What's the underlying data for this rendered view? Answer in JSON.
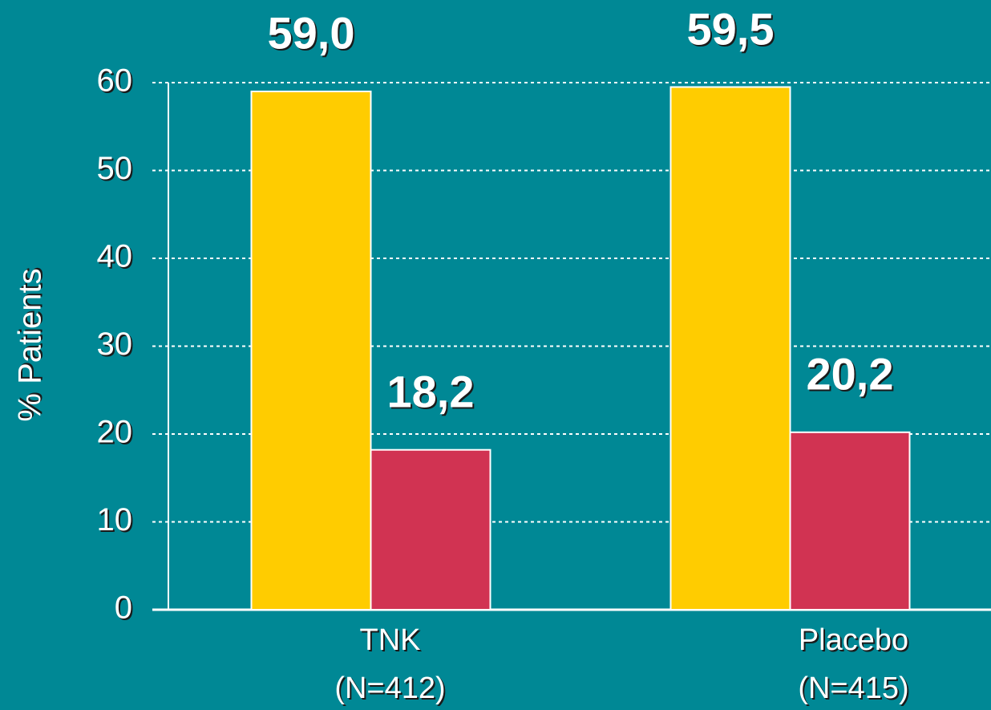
{
  "chart_data": {
    "type": "bar",
    "y_label": "% Patients",
    "categories": [
      [
        "TNK",
        "(N=412)"
      ],
      [
        "Placebo",
        "(N=415)"
      ]
    ],
    "series": [
      {
        "color": "#ffcc00",
        "values": [
          59.0,
          59.5
        ],
        "value_labels": [
          "59,0",
          "59,5"
        ]
      },
      {
        "color": "#d13352",
        "values": [
          18.2,
          20.2
        ],
        "value_labels": [
          "18,2",
          "20,2"
        ]
      }
    ],
    "ylim": [
      0,
      60
    ],
    "yticks": [
      0,
      10,
      20,
      30,
      40,
      50,
      60
    ],
    "grid": true
  }
}
